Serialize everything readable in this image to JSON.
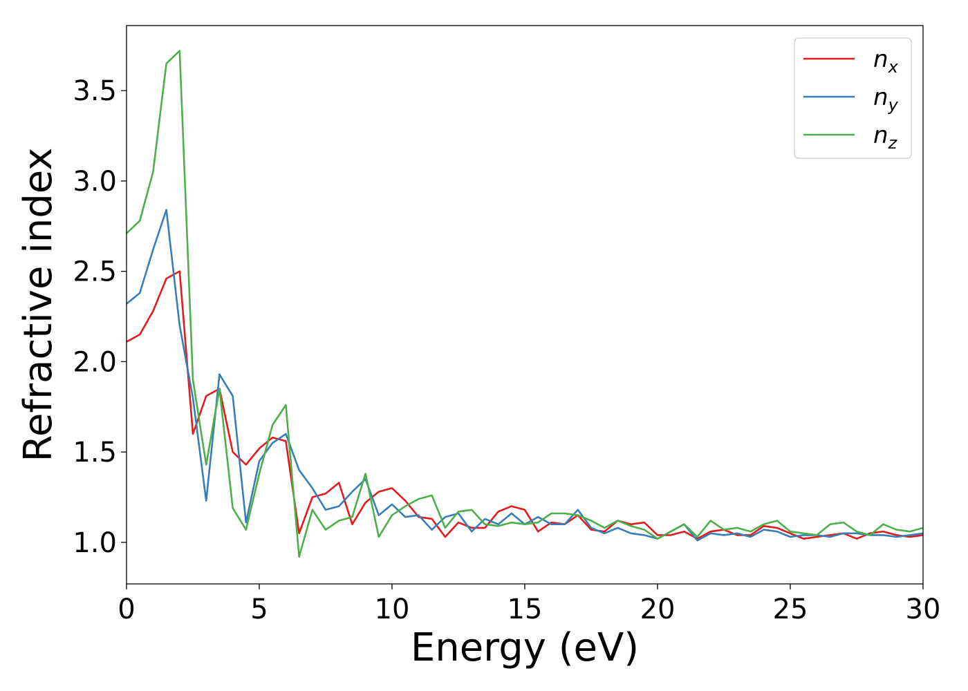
{
  "chart_data": {
    "type": "line",
    "title": "",
    "xlabel": "Energy (eV)",
    "ylabel": "Refractive index",
    "xlim": [
      0,
      30
    ],
    "ylim": [
      0.77,
      3.86
    ],
    "xticks": [
      0,
      5,
      10,
      15,
      20,
      25,
      30
    ],
    "yticks": [
      1.0,
      1.5,
      2.0,
      2.5,
      3.0,
      3.5
    ],
    "grid": false,
    "legend_position": "top-right",
    "x": [
      0,
      0.5,
      1.0,
      1.5,
      2.0,
      2.5,
      3.0,
      3.5,
      4.0,
      4.5,
      5.0,
      5.5,
      6.0,
      6.5,
      7.0,
      7.5,
      8.0,
      8.5,
      9.0,
      9.5,
      10.0,
      10.5,
      11.0,
      11.5,
      12.0,
      12.5,
      13.0,
      13.5,
      14.0,
      14.5,
      15.0,
      15.5,
      16.0,
      16.5,
      17.0,
      17.5,
      18.0,
      18.5,
      19.0,
      19.5,
      20.0,
      20.5,
      21.0,
      21.5,
      22.0,
      22.5,
      23.0,
      23.5,
      24.0,
      24.5,
      25.0,
      25.5,
      26.0,
      26.5,
      27.0,
      27.5,
      28.0,
      28.5,
      29.0,
      29.5,
      30.0
    ],
    "series": [
      {
        "name": "n_x",
        "legend_base": "n",
        "legend_sub": "x",
        "color": "#e41a1c",
        "values": [
          2.11,
          2.15,
          2.28,
          2.46,
          2.5,
          1.6,
          1.81,
          1.85,
          1.5,
          1.43,
          1.52,
          1.58,
          1.56,
          1.05,
          1.25,
          1.27,
          1.33,
          1.1,
          1.22,
          1.28,
          1.3,
          1.23,
          1.14,
          1.13,
          1.03,
          1.11,
          1.08,
          1.08,
          1.17,
          1.2,
          1.18,
          1.06,
          1.11,
          1.1,
          1.15,
          1.07,
          1.06,
          1.12,
          1.1,
          1.11,
          1.04,
          1.04,
          1.06,
          1.02,
          1.06,
          1.07,
          1.04,
          1.04,
          1.09,
          1.08,
          1.05,
          1.02,
          1.03,
          1.04,
          1.05,
          1.02,
          1.05,
          1.06,
          1.04,
          1.03,
          1.04
        ]
      },
      {
        "name": "n_y",
        "legend_base": "n",
        "legend_sub": "y",
        "color": "#377eb8",
        "values": [
          2.32,
          2.38,
          2.62,
          2.84,
          2.2,
          1.8,
          1.23,
          1.93,
          1.81,
          1.11,
          1.45,
          1.55,
          1.6,
          1.4,
          1.3,
          1.18,
          1.2,
          1.28,
          1.35,
          1.15,
          1.21,
          1.14,
          1.15,
          1.07,
          1.14,
          1.16,
          1.06,
          1.13,
          1.1,
          1.16,
          1.1,
          1.14,
          1.1,
          1.1,
          1.18,
          1.08,
          1.05,
          1.08,
          1.05,
          1.04,
          1.02,
          1.06,
          1.1,
          1.01,
          1.05,
          1.04,
          1.05,
          1.03,
          1.07,
          1.06,
          1.03,
          1.04,
          1.04,
          1.03,
          1.05,
          1.05,
          1.04,
          1.04,
          1.03,
          1.04,
          1.05
        ]
      },
      {
        "name": "n_z",
        "legend_base": "n",
        "legend_sub": "z",
        "color": "#4daf4a",
        "values": [
          2.71,
          2.78,
          3.05,
          3.65,
          3.72,
          1.9,
          1.43,
          1.85,
          1.19,
          1.07,
          1.38,
          1.65,
          1.76,
          0.92,
          1.18,
          1.07,
          1.12,
          1.14,
          1.38,
          1.03,
          1.15,
          1.2,
          1.24,
          1.26,
          1.08,
          1.17,
          1.18,
          1.1,
          1.09,
          1.11,
          1.1,
          1.11,
          1.16,
          1.16,
          1.15,
          1.12,
          1.08,
          1.12,
          1.09,
          1.07,
          1.02,
          1.06,
          1.1,
          1.03,
          1.12,
          1.07,
          1.08,
          1.06,
          1.1,
          1.12,
          1.06,
          1.05,
          1.04,
          1.1,
          1.11,
          1.06,
          1.04,
          1.1,
          1.07,
          1.06,
          1.08
        ]
      }
    ]
  }
}
